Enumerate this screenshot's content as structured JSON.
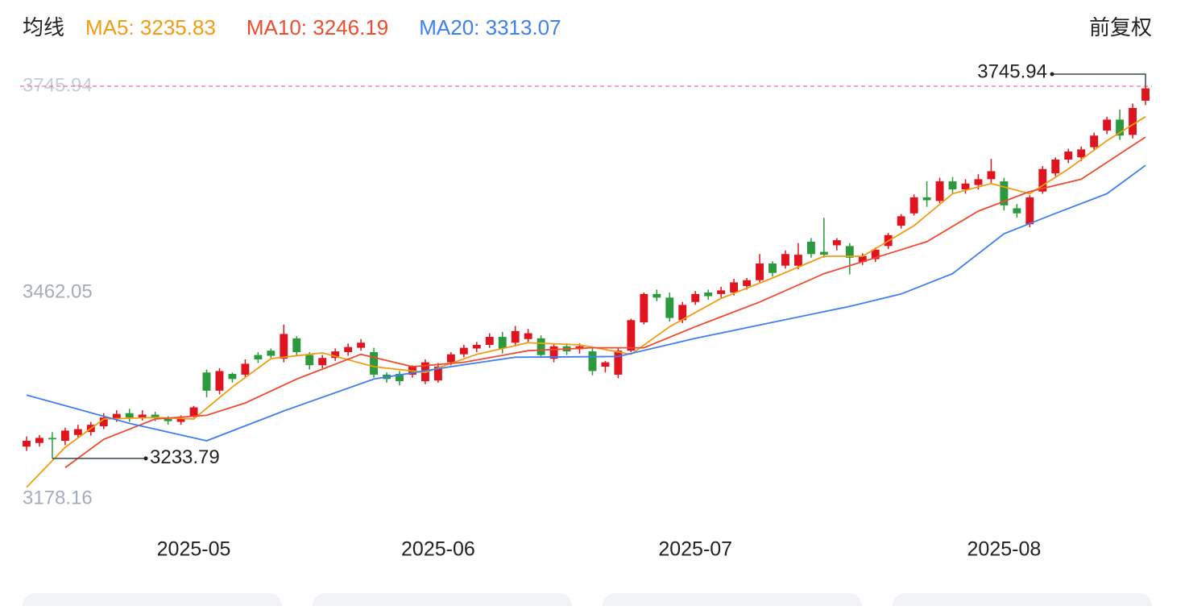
{
  "chart_data": {
    "type": "candlestick",
    "header_label": "均线",
    "adjust_label": "前复权",
    "up_color": "#e0141e",
    "down_color": "#2a9a3c",
    "categories": [
      null,
      null,
      null,
      null,
      null,
      null,
      null,
      null,
      null,
      null,
      null,
      null,
      null,
      "2025-05",
      null,
      null,
      null,
      null,
      null,
      null,
      null,
      null,
      null,
      null,
      null,
      null,
      null,
      null,
      null,
      null,
      null,
      null,
      "2025-06",
      null,
      null,
      null,
      null,
      null,
      null,
      null,
      null,
      null,
      null,
      null,
      null,
      null,
      null,
      null,
      null,
      null,
      null,
      null,
      "2025-07",
      null,
      null,
      null,
      null,
      null,
      null,
      null,
      null,
      null,
      null,
      null,
      null,
      null,
      null,
      null,
      null,
      null,
      null,
      null,
      null,
      null,
      null,
      null,
      "2025-08",
      null,
      null,
      null,
      null,
      null,
      null,
      null,
      null,
      null,
      null,
      null
    ],
    "open": [
      3250,
      3255,
      3262,
      3258,
      3266,
      3270,
      3278,
      3288,
      3296,
      3290,
      3294,
      3288,
      3284,
      3292,
      3352,
      3327,
      3350,
      3349,
      3376,
      3382,
      3371,
      3399,
      3376,
      3362,
      3372,
      3380,
      3386,
      3380,
      3349,
      3350,
      3349,
      3340,
      3341,
      3366,
      3377,
      3385,
      3390,
      3401,
      3393,
      3398,
      3399,
      3371,
      3388,
      3384,
      3381,
      3360,
      3349,
      3382,
      3421,
      3460,
      3455,
      3424,
      3449,
      3462,
      3460,
      3462,
      3471,
      3479,
      3502,
      3499,
      3499,
      3532,
      3518,
      3527,
      3526,
      3504,
      3508,
      3526,
      3554,
      3571,
      3593,
      3588,
      3615,
      3604,
      3610,
      3618,
      3615,
      3578,
      3556,
      3601,
      3626,
      3645,
      3648,
      3662,
      3685,
      3700,
      3679,
      3726
    ],
    "close": [
      3258,
      3262,
      3260,
      3272,
      3274,
      3280,
      3290,
      3295,
      3290,
      3294,
      3290,
      3285,
      3288,
      3304,
      3327,
      3354,
      3343,
      3364,
      3370,
      3375,
      3405,
      3380,
      3362,
      3372,
      3381,
      3387,
      3393,
      3349,
      3343,
      3340,
      3360,
      3366,
      3360,
      3377,
      3386,
      3390,
      3401,
      3385,
      3409,
      3406,
      3376,
      3388,
      3381,
      3388,
      3354,
      3366,
      3382,
      3424,
      3460,
      3455,
      3427,
      3445,
      3460,
      3457,
      3465,
      3476,
      3479,
      3502,
      3489,
      3515,
      3514,
      3515,
      3514,
      3534,
      3510,
      3512,
      3521,
      3541,
      3567,
      3593,
      3589,
      3615,
      3604,
      3612,
      3618,
      3629,
      3582,
      3571,
      3593,
      3632,
      3645,
      3656,
      3659,
      3678,
      3700,
      3678,
      3716,
      3743
    ],
    "low": [
      3244,
      3250,
      3233.79,
      3252,
      3262,
      3265,
      3274,
      3284,
      3284,
      3286,
      3285,
      3280,
      3280,
      3290,
      3318,
      3322,
      3338,
      3345,
      3365,
      3372,
      3366,
      3375,
      3356,
      3358,
      3368,
      3375,
      3382,
      3345,
      3338,
      3334,
      3345,
      3336,
      3338,
      3362,
      3373,
      3380,
      3386,
      3378,
      3388,
      3394,
      3372,
      3366,
      3376,
      3378,
      3348,
      3352,
      3344,
      3380,
      3418,
      3450,
      3422,
      3420,
      3445,
      3452,
      3455,
      3458,
      3466,
      3476,
      3484,
      3495,
      3494,
      3510,
      3510,
      3520,
      3487,
      3500,
      3504,
      3522,
      3550,
      3568,
      3580,
      3585,
      3598,
      3598,
      3604,
      3612,
      3575,
      3565,
      3552,
      3598,
      3622,
      3640,
      3643,
      3658,
      3680,
      3672,
      3674,
      3720
    ],
    "high": [
      3264,
      3266,
      3270,
      3276,
      3280,
      3284,
      3296,
      3300,
      3302,
      3300,
      3298,
      3292,
      3293,
      3306,
      3356,
      3358,
      3352,
      3370,
      3380,
      3385,
      3418,
      3402,
      3380,
      3376,
      3385,
      3392,
      3398,
      3386,
      3352,
      3354,
      3362,
      3370,
      3365,
      3380,
      3390,
      3394,
      3406,
      3408,
      3416,
      3412,
      3403,
      3392,
      3392,
      3392,
      3386,
      3368,
      3385,
      3426,
      3462,
      3466,
      3462,
      3449,
      3464,
      3466,
      3470,
      3481,
      3482,
      3515,
      3505,
      3520,
      3530,
      3537,
      3565,
      3537,
      3530,
      3516,
      3524,
      3544,
      3570,
      3597,
      3615,
      3620,
      3621,
      3618,
      3625,
      3646,
      3620,
      3584,
      3596,
      3636,
      3648,
      3660,
      3663,
      3682,
      3704,
      3714,
      3722,
      3745.94
    ],
    "series": [
      {
        "name": "MA5: 3235.83",
        "color": "#f39c12",
        "x": [
          0,
          3,
          6,
          10,
          13,
          16,
          19,
          23,
          27,
          31,
          35,
          39,
          43,
          47,
          50,
          54,
          58,
          62,
          65,
          69,
          72,
          75,
          78,
          81,
          84,
          87
        ],
        "values": [
          3194,
          3249,
          3288,
          3290,
          3288,
          3332,
          3371,
          3379,
          3360,
          3352,
          3377,
          3393,
          3390,
          3377,
          3415,
          3454,
          3482,
          3512,
          3512,
          3554,
          3598,
          3612,
          3598,
          3632,
          3671,
          3704
        ]
      },
      {
        "name": "MA10: 3246.19",
        "color": "#f04b2f",
        "x": [
          3,
          6,
          10,
          14,
          17,
          21,
          26,
          30,
          34,
          39,
          44,
          48,
          52,
          57,
          62,
          66,
          70,
          74,
          78,
          82,
          87
        ],
        "values": [
          3221,
          3260,
          3288,
          3293,
          3310,
          3343,
          3377,
          3360,
          3366,
          3382,
          3386,
          3386,
          3415,
          3449,
          3488,
          3510,
          3532,
          3574,
          3601,
          3618,
          3676
        ]
      },
      {
        "name": "MA20: 3313.07",
        "color": "#3f7ff0",
        "x": [
          0,
          8,
          14,
          20,
          27,
          33,
          38,
          46,
          52,
          58,
          64,
          68,
          72,
          76,
          80,
          84,
          87
        ],
        "values": [
          3321,
          3282,
          3258,
          3299,
          3343,
          3360,
          3373,
          3374,
          3399,
          3421,
          3443,
          3460,
          3488,
          3543,
          3571,
          3598,
          3637
        ]
      }
    ],
    "ylim": [
      3178.16,
      3745.94
    ],
    "yticks": [
      3178.16,
      3462.05,
      3745.94
    ]
  }
}
